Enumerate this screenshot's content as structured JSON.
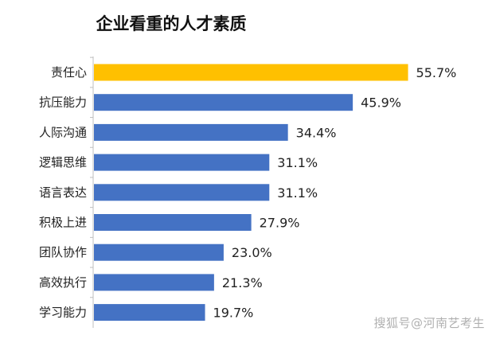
{
  "chart_data": {
    "type": "bar",
    "orientation": "horizontal",
    "title": "企业看重的人才素质",
    "xlabel": "",
    "ylabel": "",
    "xlim": [
      0,
      60
    ],
    "grid": false,
    "categories": [
      "责任心",
      "抗压能力",
      "人际沟通",
      "逻辑思维",
      "语言表达",
      "积极上进",
      "团队协作",
      "高效执行",
      "学习能力"
    ],
    "values": [
      55.7,
      45.9,
      34.4,
      31.1,
      31.1,
      27.9,
      23.0,
      21.3,
      19.7
    ],
    "value_labels": [
      "55.7%",
      "45.9%",
      "34.4%",
      "31.1%",
      "31.1%",
      "27.9%",
      "23.0%",
      "21.3%",
      "19.7%"
    ],
    "highlight_index": 0,
    "colors": {
      "bar": "#4472C4",
      "highlight": "#FFC000",
      "axis": "#bfbfbf"
    }
  },
  "watermark": "搜狐号@河南艺考生"
}
